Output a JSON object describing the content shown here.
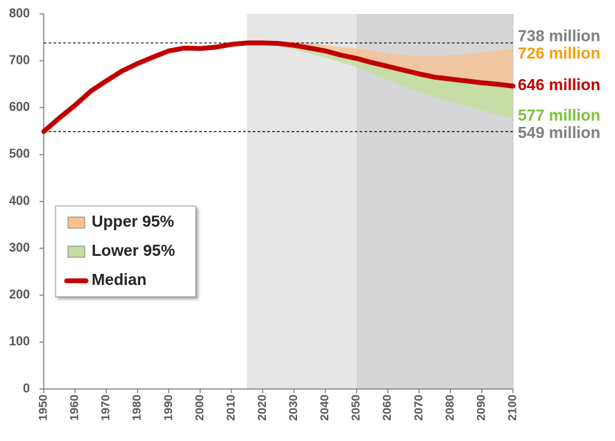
{
  "chart_data": {
    "type": "line",
    "x": [
      1950,
      1955,
      1960,
      1965,
      1970,
      1975,
      1980,
      1985,
      1990,
      1995,
      2000,
      2005,
      2010,
      2015,
      2020,
      2025,
      2030,
      2035,
      2040,
      2045,
      2050,
      2055,
      2060,
      2065,
      2070,
      2075,
      2080,
      2085,
      2090,
      2095,
      2100
    ],
    "series": [
      {
        "name": "Upper 95%",
        "color": "#fac090",
        "values": [
          null,
          null,
          null,
          null,
          null,
          null,
          null,
          null,
          null,
          null,
          null,
          null,
          null,
          738,
          740,
          741,
          740,
          737,
          733,
          729,
          726,
          721,
          716,
          712,
          710,
          710,
          711,
          714,
          717,
          721,
          726
        ]
      },
      {
        "name": "Lower 95%",
        "color": "#c3dea0",
        "values": [
          null,
          null,
          null,
          null,
          null,
          null,
          null,
          null,
          null,
          null,
          null,
          null,
          null,
          738,
          736,
          732,
          725,
          716,
          707,
          697,
          687,
          673,
          660,
          646,
          634,
          623,
          613,
          604,
          595,
          586,
          577
        ]
      },
      {
        "name": "Median",
        "color": "#c00000",
        "values": [
          549,
          578,
          605,
          635,
          657,
          678,
          694,
          708,
          721,
          727,
          726,
          729,
          735,
          738,
          738,
          737,
          733,
          727,
          721,
          712,
          705,
          696,
          688,
          680,
          672,
          665,
          661,
          657,
          653,
          650,
          646
        ]
      }
    ],
    "periods": [
      {
        "from": 2015,
        "to": 2050,
        "color": "#e6e6e6"
      },
      {
        "from": 2050,
        "to": 2100,
        "color": "#d6d6d6"
      }
    ],
    "annotations": [
      {
        "label": "738 million",
        "value": 738,
        "color": "#7f7f7f",
        "dashed": true
      },
      {
        "label": "726 million",
        "value": 726,
        "color": "#f59d0e",
        "dashed": false
      },
      {
        "label": "646 million",
        "value": 646,
        "color": "#c00000",
        "dashed": false
      },
      {
        "label": "577 million",
        "value": 577,
        "color": "#7dc13c",
        "dashed": false
      },
      {
        "label": "549 million",
        "value": 549,
        "color": "#7f7f7f",
        "dashed": true
      }
    ],
    "xlim": [
      1950,
      2100
    ],
    "xticks": [
      1950,
      1960,
      1970,
      1980,
      1990,
      2000,
      2010,
      2020,
      2030,
      2040,
      2050,
      2060,
      2070,
      2080,
      2090,
      2100
    ],
    "ylim": [
      0,
      800
    ],
    "yticks": [
      0,
      100,
      200,
      300,
      400,
      500,
      600,
      700,
      800
    ],
    "legend": "left"
  }
}
